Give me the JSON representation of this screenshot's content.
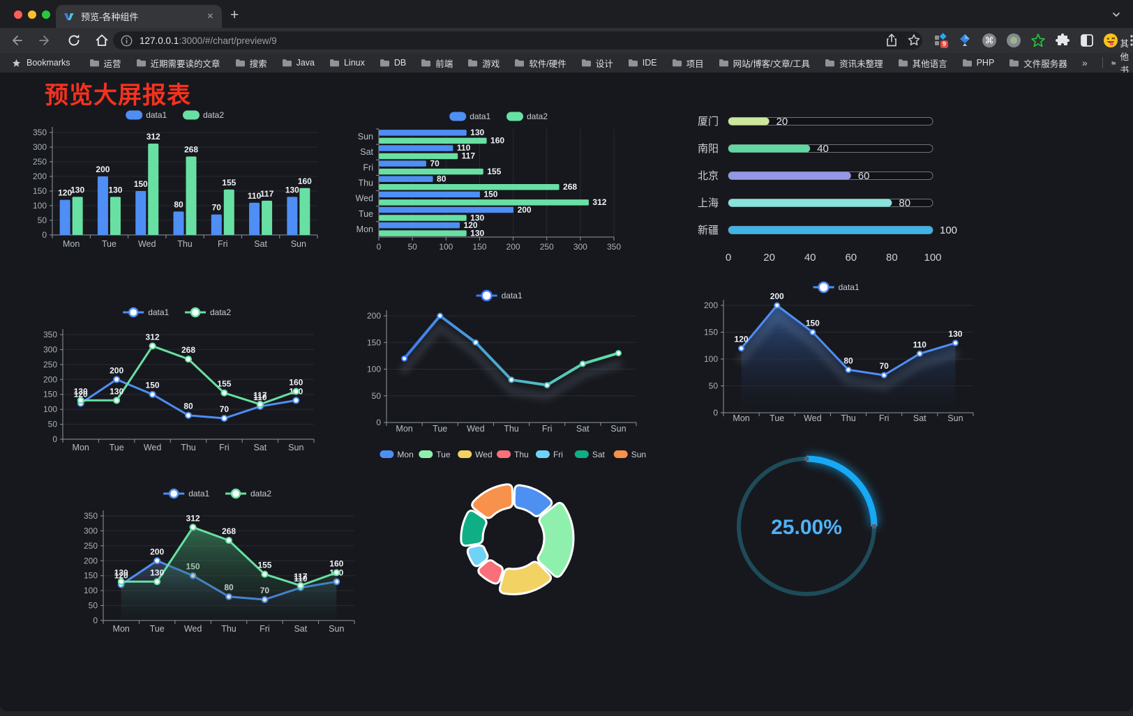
{
  "browser": {
    "traffic_lights": [
      "#ff5f57",
      "#febc2e",
      "#28c840"
    ],
    "tab": {
      "title": "预览-各种组件",
      "close_glyph": "×"
    },
    "new_tab_glyph": "+",
    "url_host": "127.0.0.1",
    "url_rest": ":3000/#/chart/preview/9",
    "extension_badge": "9",
    "bookmarks_bar": {
      "star_label": "Bookmarks",
      "folders": [
        "运营",
        "近期需要读的文章",
        "搜索",
        "Java",
        "Linux",
        "DB",
        "前端",
        "游戏",
        "软件/硬件",
        "设计",
        "IDE",
        "项目",
        "网站/博客/文章/工具",
        "资讯未整理",
        "其他语言",
        "PHP",
        "文件服务器"
      ],
      "overflow_glyph": "»",
      "other_bookmarks": "其他书签"
    }
  },
  "page": {
    "title": "预览大屏报表",
    "title_color": "#f5321f",
    "background": "#17181d"
  },
  "chart_data": [
    {
      "id": "bar-vertical",
      "type": "bar",
      "categories": [
        "Mon",
        "Tue",
        "Wed",
        "Thu",
        "Fri",
        "Sat",
        "Sun"
      ],
      "series": [
        {
          "name": "data1",
          "color": "#4e8ef5",
          "values": [
            120,
            200,
            150,
            80,
            70,
            110,
            130
          ]
        },
        {
          "name": "data2",
          "color": "#68e0a3",
          "values": [
            130,
            130,
            312,
            268,
            155,
            117,
            160
          ]
        }
      ],
      "ylim": [
        0,
        350
      ],
      "ytick_step": 50,
      "value_labels": true,
      "legend_position": "top",
      "grid": true
    },
    {
      "id": "bar-horizontal",
      "type": "bar-horizontal",
      "categories": [
        "Mon",
        "Tue",
        "Wed",
        "Thu",
        "Fri",
        "Sat",
        "Sun"
      ],
      "series": [
        {
          "name": "data1",
          "color": "#4e8ef5",
          "values": [
            120,
            200,
            150,
            80,
            70,
            110,
            130
          ]
        },
        {
          "name": "data2",
          "color": "#68e0a3",
          "values": [
            130,
            130,
            312,
            268,
            155,
            117,
            160
          ]
        }
      ],
      "xlim": [
        0,
        350
      ],
      "xtick_step": 50,
      "value_labels": true,
      "legend_position": "top",
      "grid": true
    },
    {
      "id": "capsule-bars",
      "type": "progress-bars",
      "categories": [
        "厦门",
        "南阳",
        "北京",
        "上海",
        "新疆"
      ],
      "values": [
        20,
        40,
        60,
        80,
        100
      ],
      "colors": [
        "#cbe79c",
        "#5fd8a2",
        "#9398e6",
        "#87e3dc",
        "#3fb3e4"
      ],
      "xlim": [
        0,
        100
      ],
      "xticks": [
        0,
        20,
        40,
        60,
        80,
        100
      ]
    },
    {
      "id": "line-dual",
      "type": "line",
      "categories": [
        "Mon",
        "Tue",
        "Wed",
        "Thu",
        "Fri",
        "Sat",
        "Sun"
      ],
      "series": [
        {
          "name": "data1",
          "color": "#4e8ef5",
          "values": [
            120,
            200,
            150,
            80,
            70,
            110,
            130
          ]
        },
        {
          "name": "data2",
          "color": "#68e0a3",
          "values": [
            130,
            130,
            312,
            268,
            155,
            117,
            160
          ]
        }
      ],
      "ylim": [
        0,
        350
      ],
      "ytick_step": 50,
      "value_labels": true,
      "legend_position": "top",
      "grid": true
    },
    {
      "id": "line-gradient",
      "type": "line",
      "categories": [
        "Mon",
        "Tue",
        "Wed",
        "Thu",
        "Fri",
        "Sat",
        "Sun"
      ],
      "series": [
        {
          "name": "data1",
          "gradient": [
            "#3d7bf5",
            "#5fe3a3"
          ],
          "values": [
            120,
            200,
            150,
            80,
            70,
            110,
            130
          ]
        }
      ],
      "ylim": [
        0,
        200
      ],
      "ytick_step": 50,
      "value_labels": false,
      "legend_position": "top",
      "grid": true
    },
    {
      "id": "line-area",
      "type": "area",
      "categories": [
        "Mon",
        "Tue",
        "Wed",
        "Thu",
        "Fri",
        "Sat",
        "Sun"
      ],
      "series": [
        {
          "name": "data1",
          "color": "#4e8ef5",
          "values": [
            120,
            200,
            150,
            80,
            70,
            110,
            130
          ],
          "area": [
            "rgba(49,86,145,0.95)",
            "rgba(22,30,48,0.03)"
          ]
        }
      ],
      "ylim": [
        0,
        200
      ],
      "ytick_step": 50,
      "value_labels": true,
      "legend_position": "top",
      "grid": true
    },
    {
      "id": "line-area-dual",
      "type": "area",
      "categories": [
        "Mon",
        "Tue",
        "Wed",
        "Thu",
        "Fri",
        "Sat",
        "Sun"
      ],
      "series": [
        {
          "name": "data1",
          "color": "#4e8ef5",
          "values": [
            120,
            200,
            150,
            80,
            70,
            110,
            130
          ],
          "area": [
            "rgba(86,116,160,0.45)",
            "rgba(30,40,60,0.03)"
          ]
        },
        {
          "name": "data2",
          "color": "#68e0a3",
          "values": [
            130,
            130,
            312,
            268,
            155,
            117,
            160
          ],
          "area": [
            "rgba(64,150,104,0.65)",
            "rgba(30,60,45,0.04)"
          ]
        }
      ],
      "ylim": [
        0,
        350
      ],
      "ytick_step": 50,
      "value_labels": true,
      "legend_position": "top",
      "grid": true
    },
    {
      "id": "rose-pie",
      "type": "pie",
      "labels": [
        "Mon",
        "Tue",
        "Wed",
        "Thu",
        "Fri",
        "Sat",
        "Sun"
      ],
      "values": [
        120,
        200,
        150,
        80,
        70,
        110,
        130
      ],
      "colors": [
        "#4e8ff2",
        "#8ff0ae",
        "#f2d263",
        "#f87079",
        "#6fd3f7",
        "#0fae85",
        "#f8914b"
      ],
      "rose": true,
      "donut": true,
      "border_color": "#ffffff",
      "legend_position": "top"
    },
    {
      "id": "gauge",
      "type": "gauge",
      "value": 25,
      "max": 100,
      "display": "25.00%",
      "color": "#17a9f5",
      "track_color": "#1e4b59",
      "text_color": "#4fb2f7"
    }
  ]
}
